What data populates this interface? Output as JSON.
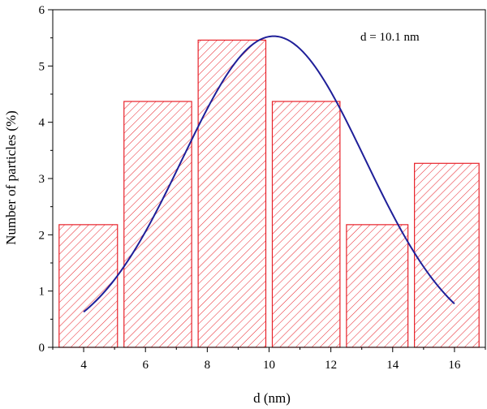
{
  "chart_data": {
    "type": "bar",
    "annotation": "d = 10.1 nm",
    "xlabel": "d (nm)",
    "ylabel": "Number of particles (%)",
    "xlim": [
      3,
      17
    ],
    "ylim": [
      0,
      6
    ],
    "x_ticks": [
      "4",
      "6",
      "8",
      "10",
      "12",
      "14",
      "16"
    ],
    "y_ticks": [
      "0",
      "1",
      "2",
      "3",
      "4",
      "5",
      "6"
    ],
    "bars": [
      {
        "x_start": 3.1,
        "x_end": 5.2,
        "value": 2.18
      },
      {
        "x_start": 5.2,
        "x_end": 7.6,
        "value": 4.37
      },
      {
        "x_start": 7.6,
        "x_end": 10.0,
        "value": 5.46
      },
      {
        "x_start": 10.0,
        "x_end": 12.4,
        "value": 4.37
      },
      {
        "x_start": 12.4,
        "x_end": 14.6,
        "value": 2.18
      },
      {
        "x_start": 14.6,
        "x_end": 16.9,
        "value": 3.27
      }
    ],
    "fit_curve": {
      "type": "gaussian",
      "x_range": [
        4,
        16
      ],
      "center": 10.15,
      "peak": 5.53,
      "sigma": 2.95
    },
    "bar_color": "#e8222a",
    "curve_color": "#1f1f99",
    "grid": false,
    "legend": "none"
  }
}
